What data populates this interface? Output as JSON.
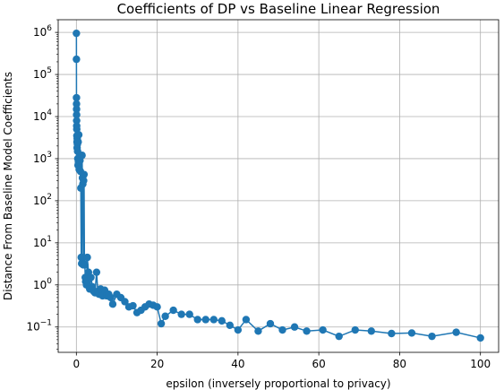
{
  "chart_data": {
    "type": "scatter",
    "title": "Coefficients of DP vs Baseline Linear Regression",
    "xlabel": "epsilon (inversely proportional to privacy)",
    "ylabel": "Distance From Baseline Model Coefficients",
    "xscale": "linear",
    "yscale": "log",
    "xlim": [
      -4.5,
      104.5
    ],
    "ylim": [
      0.025,
      2000000
    ],
    "grid": true,
    "markers": "circle",
    "connected": true,
    "color": "#1f77b4",
    "xticks": [
      0,
      20,
      40,
      60,
      80,
      100
    ],
    "xtick_labels": [
      "0",
      "20",
      "40",
      "60",
      "80",
      "100"
    ],
    "yticks": [
      0.1,
      1,
      10,
      100,
      1000,
      10000,
      100000,
      1000000
    ],
    "ytick_labels": [
      {
        "base": "10",
        "exp": "−1"
      },
      {
        "base": "10",
        "exp": "0"
      },
      {
        "base": "10",
        "exp": "1"
      },
      {
        "base": "10",
        "exp": "2"
      },
      {
        "base": "10",
        "exp": "3"
      },
      {
        "base": "10",
        "exp": "4"
      },
      {
        "base": "10",
        "exp": "5"
      },
      {
        "base": "10",
        "exp": "6"
      }
    ],
    "series": [
      {
        "x": [
          0.01,
          0.02,
          0.03,
          0.04,
          0.05,
          0.06,
          0.07,
          0.08,
          0.1,
          0.12,
          0.15,
          0.18,
          0.2,
          0.25,
          0.3,
          0.35,
          0.4,
          0.45,
          0.5,
          0.6,
          0.7,
          0.8,
          0.9,
          1.0,
          1.1,
          1.2,
          1.3,
          1.4,
          1.5,
          1.6,
          1.7,
          1.8,
          1.9,
          2.0,
          2.1,
          2.2,
          2.3,
          2.5,
          2.7,
          3.0,
          3.3,
          3.6,
          4.0,
          4.3,
          4.6,
          5.0,
          5.3,
          5.6,
          6.0,
          6.5,
          7.0,
          7.5,
          8.0,
          8.5,
          9.0,
          10.0,
          11.0,
          12.0,
          13.0,
          14.0,
          15.0,
          16.0,
          17.0,
          18.0,
          19.0,
          20.0,
          21.0,
          22.0,
          24.0,
          26.0,
          28.0,
          30.0,
          32.0,
          34.0,
          36.0,
          38.0,
          40.0,
          42.0,
          45.0,
          48.0,
          51.0,
          54.0,
          57.0,
          61.0,
          65.0,
          69.0,
          73.0,
          78.0,
          83.0,
          88.0,
          94.0,
          100.0
        ],
        "y": [
          950000,
          230000,
          28000,
          20000,
          15000,
          11000,
          8000,
          6000,
          5000,
          3500,
          2500,
          1800,
          3000,
          2200,
          1500,
          1000,
          700,
          2500,
          850,
          3700,
          550,
          1200,
          900,
          500,
          200,
          4.5,
          3.2,
          1200,
          350,
          250,
          3.0,
          300,
          420,
          3.1,
          3.0,
          1.5,
          1.2,
          1.0,
          4.5,
          2.0,
          0.8,
          1.5,
          0.9,
          0.7,
          0.65,
          2.0,
          0.7,
          0.6,
          0.8,
          0.55,
          0.75,
          0.55,
          0.6,
          0.5,
          0.35,
          0.6,
          0.5,
          0.4,
          0.3,
          0.32,
          0.22,
          0.25,
          0.3,
          0.35,
          0.33,
          0.3,
          0.12,
          0.18,
          0.25,
          0.2,
          0.2,
          0.15,
          0.15,
          0.15,
          0.14,
          0.11,
          0.085,
          0.15,
          0.08,
          0.12,
          0.085,
          0.1,
          0.08,
          0.085,
          0.06,
          0.085,
          0.08,
          0.07,
          0.072,
          0.06,
          0.075,
          0.055
        ]
      }
    ]
  }
}
